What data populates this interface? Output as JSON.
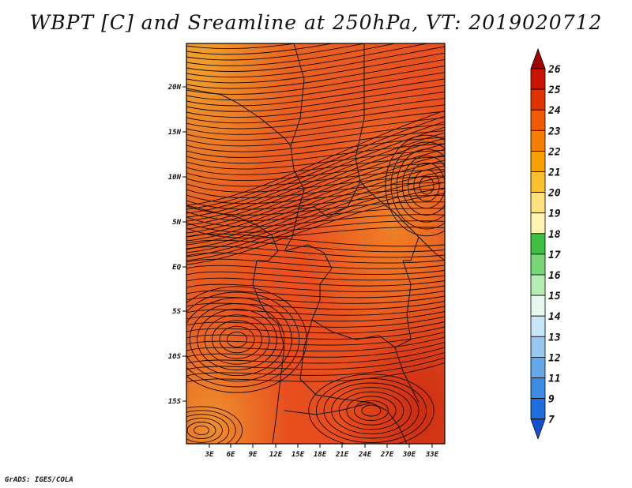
{
  "title": "WBPT [C] and Sreamline at 250hPa, VT: 2019020712",
  "credit": "GrADS: IGES/COLA",
  "map": {
    "lat_ticks": [
      "20N",
      "15N",
      "10N",
      "5N",
      "EQ",
      "5S",
      "10S",
      "15S"
    ],
    "lon_ticks": [
      "3E",
      "6E",
      "9E",
      "12E",
      "15E",
      "18E",
      "21E",
      "24E",
      "27E",
      "30E",
      "33E"
    ],
    "field": "WBPT [C]",
    "level": "250hPa",
    "valid_time": "2019020712"
  },
  "colorbar": {
    "labels": [
      "26",
      "25",
      "24",
      "23",
      "22",
      "21",
      "20",
      "19",
      "18",
      "17",
      "16",
      "15",
      "14",
      "13",
      "12",
      "11",
      "9",
      "7"
    ],
    "colors": [
      "#a50000",
      "#c81400",
      "#e13200",
      "#f05a00",
      "#f57d00",
      "#f8a000",
      "#fbc030",
      "#fde080",
      "#fff4b0",
      "#40c040",
      "#78d878",
      "#b4ecb4",
      "#e6f8f0",
      "#c8e6fa",
      "#96c8f0",
      "#64a8ec",
      "#3c8ce6",
      "#1e6ee0",
      "#1450d2"
    ]
  }
}
